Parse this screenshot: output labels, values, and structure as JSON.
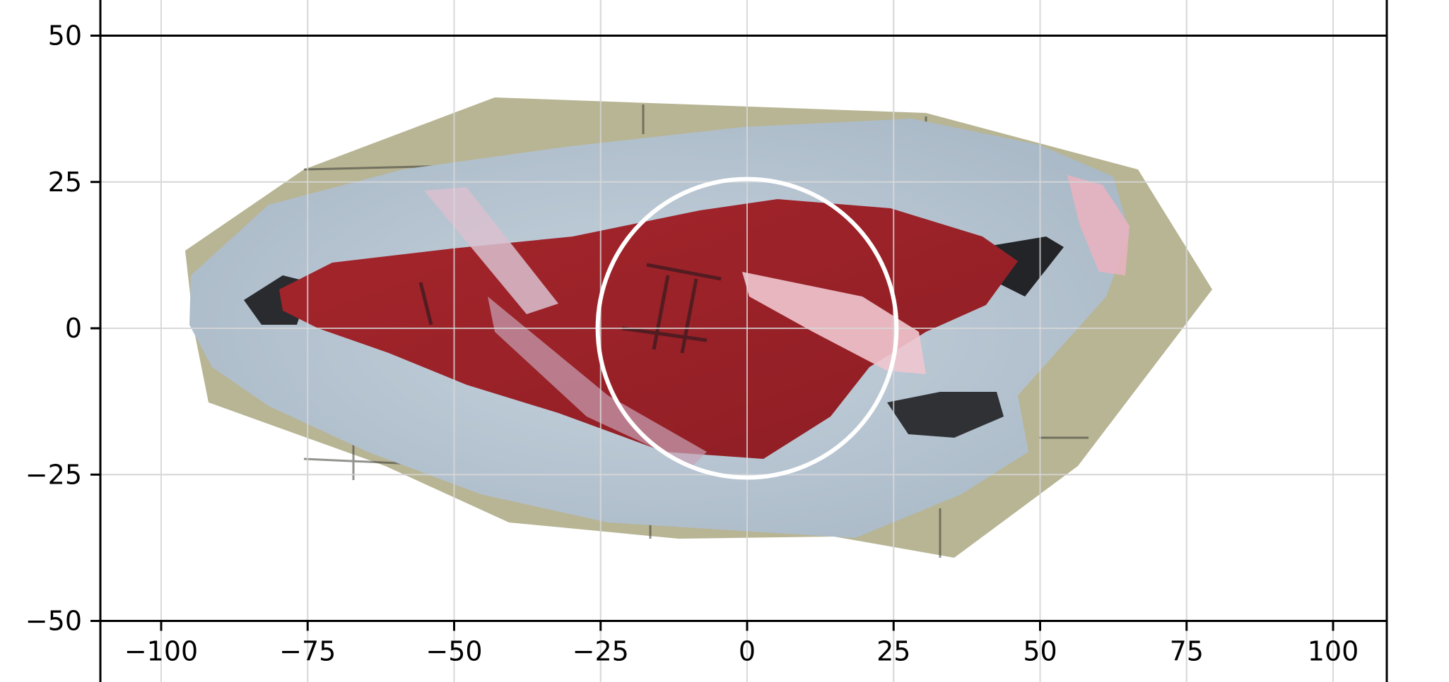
{
  "chart_data": {
    "type": "scatter",
    "title": "",
    "xlabel": "",
    "ylabel": "",
    "xlim": [
      -110,
      110
    ],
    "ylim": [
      -50,
      50
    ],
    "grid": true,
    "xticks": [
      -100,
      -75,
      -50,
      -25,
      0,
      25,
      50,
      75,
      100
    ],
    "yticks": [
      -50,
      -25,
      0,
      25,
      50
    ],
    "xtick_labels": [
      "−100",
      "−75",
      "−50",
      "−25",
      "0",
      "25",
      "50",
      "75",
      "100"
    ],
    "ytick_labels": [
      "−50",
      "−25",
      "0",
      "25",
      "50"
    ],
    "overlay_image": {
      "description_colors": {
        "backing": "#b8b594",
        "border": "#b9c8d6",
        "interior": "#9e2329",
        "highlight": "#f0c6cf",
        "dark": "#2f3135"
      }
    },
    "circle": {
      "center": [
        0,
        0
      ],
      "radius": 25.5,
      "color": "#ffffff"
    },
    "colors": {
      "axis": "#000000",
      "grid": "#d9d9d9"
    }
  }
}
